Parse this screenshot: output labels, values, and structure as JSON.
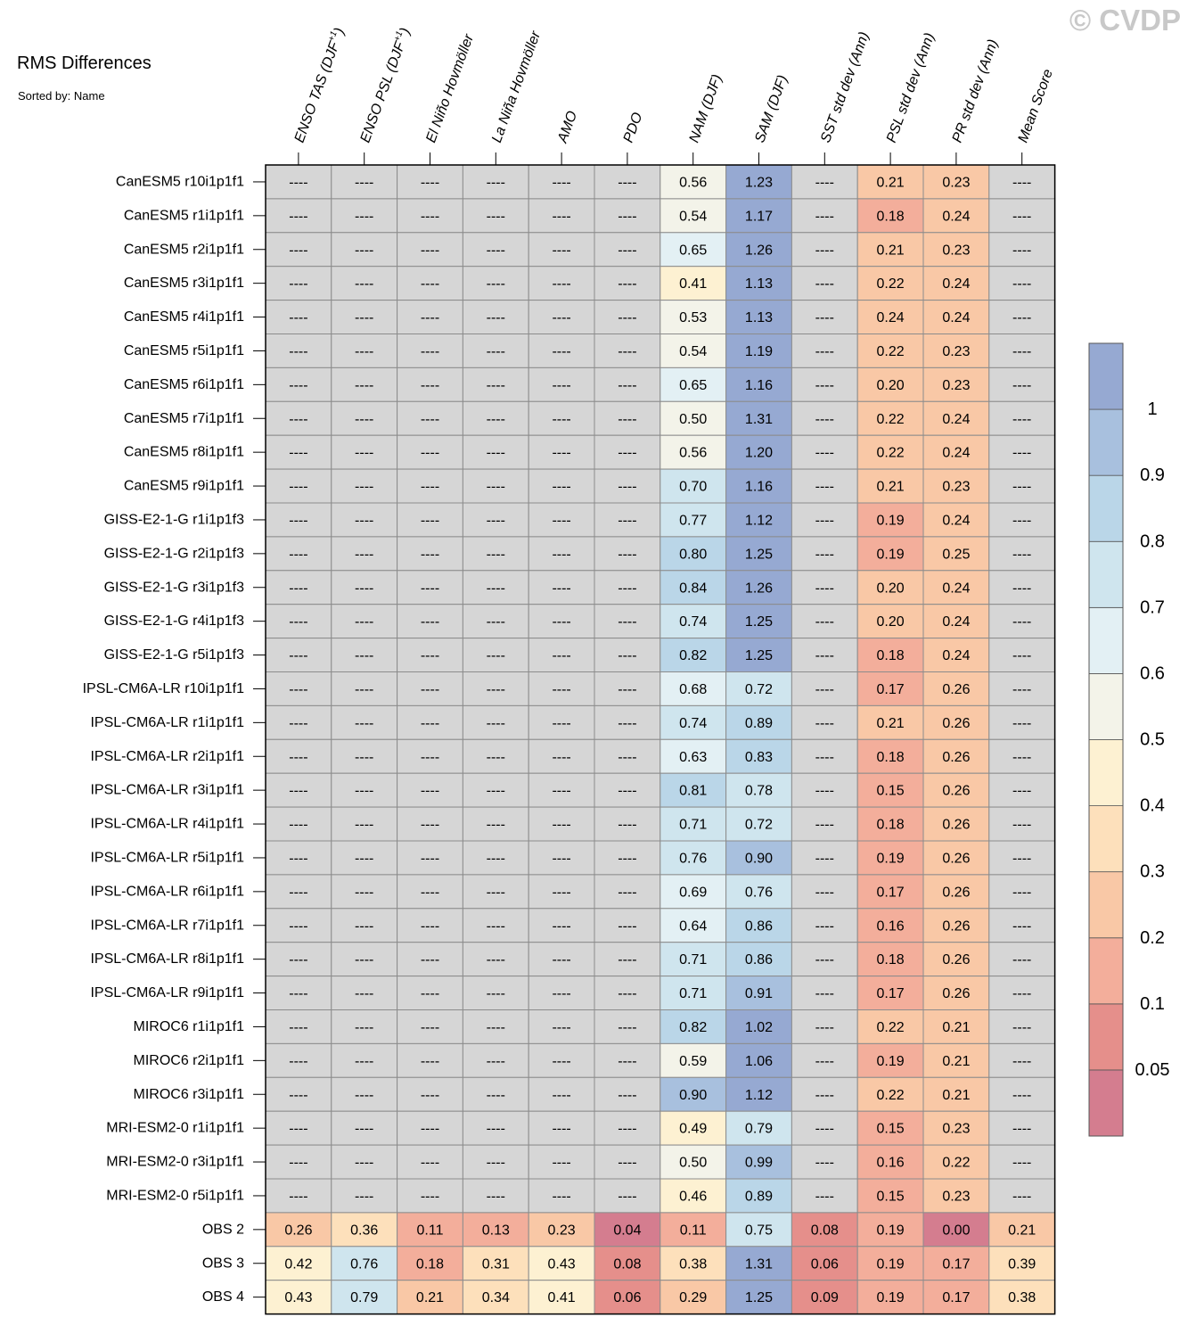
{
  "title": "RMS Differences",
  "subtitle": "Sorted by: Name",
  "watermark": "© CVDP",
  "chart_data": {
    "type": "heatmap",
    "title": "RMS Differences",
    "subtitle": "Sorted by: Name",
    "missing_label": "----",
    "missing_color": "#d6d6d6",
    "columns": [
      {
        "label": "ENSO TAS (DJF",
        "sup": "+1",
        "close": ")"
      },
      {
        "label": "ENSO PSL (DJF",
        "sup": "+1",
        "close": ")"
      },
      {
        "label": "El Niño Hovmöller",
        "sup": "",
        "close": ""
      },
      {
        "label": "La Niña Hovmöller",
        "sup": "",
        "close": ""
      },
      {
        "label": "AMO",
        "sup": "",
        "close": ""
      },
      {
        "label": "PDO",
        "sup": "",
        "close": ""
      },
      {
        "label": "NAM (DJF)",
        "sup": "",
        "close": ""
      },
      {
        "label": "SAM (DJF)",
        "sup": "",
        "close": ""
      },
      {
        "label": "SST std dev (Ann)",
        "sup": "",
        "close": ""
      },
      {
        "label": "PSL std dev (Ann)",
        "sup": "",
        "close": ""
      },
      {
        "label": "PR std dev (Ann)",
        "sup": "",
        "close": ""
      },
      {
        "label": "Mean Score",
        "sup": "",
        "close": ""
      }
    ],
    "rows": [
      {
        "name": "CanESM5 r10i1p1f1",
        "values": [
          null,
          null,
          null,
          null,
          null,
          null,
          0.56,
          1.23,
          null,
          0.21,
          0.23,
          null
        ]
      },
      {
        "name": "CanESM5 r1i1p1f1",
        "values": [
          null,
          null,
          null,
          null,
          null,
          null,
          0.54,
          1.17,
          null,
          0.18,
          0.24,
          null
        ]
      },
      {
        "name": "CanESM5 r2i1p1f1",
        "values": [
          null,
          null,
          null,
          null,
          null,
          null,
          0.65,
          1.26,
          null,
          0.21,
          0.23,
          null
        ]
      },
      {
        "name": "CanESM5 r3i1p1f1",
        "values": [
          null,
          null,
          null,
          null,
          null,
          null,
          0.41,
          1.13,
          null,
          0.22,
          0.24,
          null
        ]
      },
      {
        "name": "CanESM5 r4i1p1f1",
        "values": [
          null,
          null,
          null,
          null,
          null,
          null,
          0.53,
          1.13,
          null,
          0.24,
          0.24,
          null
        ]
      },
      {
        "name": "CanESM5 r5i1p1f1",
        "values": [
          null,
          null,
          null,
          null,
          null,
          null,
          0.54,
          1.19,
          null,
          0.22,
          0.23,
          null
        ]
      },
      {
        "name": "CanESM5 r6i1p1f1",
        "values": [
          null,
          null,
          null,
          null,
          null,
          null,
          0.65,
          1.16,
          null,
          0.2,
          0.23,
          null
        ]
      },
      {
        "name": "CanESM5 r7i1p1f1",
        "values": [
          null,
          null,
          null,
          null,
          null,
          null,
          0.5,
          1.31,
          null,
          0.22,
          0.24,
          null
        ]
      },
      {
        "name": "CanESM5 r8i1p1f1",
        "values": [
          null,
          null,
          null,
          null,
          null,
          null,
          0.56,
          1.2,
          null,
          0.22,
          0.24,
          null
        ]
      },
      {
        "name": "CanESM5 r9i1p1f1",
        "values": [
          null,
          null,
          null,
          null,
          null,
          null,
          0.7,
          1.16,
          null,
          0.21,
          0.23,
          null
        ]
      },
      {
        "name": "GISS-E2-1-G r1i1p1f3",
        "values": [
          null,
          null,
          null,
          null,
          null,
          null,
          0.77,
          1.12,
          null,
          0.19,
          0.24,
          null
        ]
      },
      {
        "name": "GISS-E2-1-G r2i1p1f3",
        "values": [
          null,
          null,
          null,
          null,
          null,
          null,
          0.8,
          1.25,
          null,
          0.19,
          0.25,
          null
        ]
      },
      {
        "name": "GISS-E2-1-G r3i1p1f3",
        "values": [
          null,
          null,
          null,
          null,
          null,
          null,
          0.84,
          1.26,
          null,
          0.2,
          0.24,
          null
        ]
      },
      {
        "name": "GISS-E2-1-G r4i1p1f3",
        "values": [
          null,
          null,
          null,
          null,
          null,
          null,
          0.74,
          1.25,
          null,
          0.2,
          0.24,
          null
        ]
      },
      {
        "name": "GISS-E2-1-G r5i1p1f3",
        "values": [
          null,
          null,
          null,
          null,
          null,
          null,
          0.82,
          1.25,
          null,
          0.18,
          0.24,
          null
        ]
      },
      {
        "name": "IPSL-CM6A-LR r10i1p1f1",
        "values": [
          null,
          null,
          null,
          null,
          null,
          null,
          0.68,
          0.72,
          null,
          0.17,
          0.26,
          null
        ]
      },
      {
        "name": "IPSL-CM6A-LR r1i1p1f1",
        "values": [
          null,
          null,
          null,
          null,
          null,
          null,
          0.74,
          0.89,
          null,
          0.21,
          0.26,
          null
        ]
      },
      {
        "name": "IPSL-CM6A-LR r2i1p1f1",
        "values": [
          null,
          null,
          null,
          null,
          null,
          null,
          0.63,
          0.83,
          null,
          0.18,
          0.26,
          null
        ]
      },
      {
        "name": "IPSL-CM6A-LR r3i1p1f1",
        "values": [
          null,
          null,
          null,
          null,
          null,
          null,
          0.81,
          0.78,
          null,
          0.15,
          0.26,
          null
        ]
      },
      {
        "name": "IPSL-CM6A-LR r4i1p1f1",
        "values": [
          null,
          null,
          null,
          null,
          null,
          null,
          0.71,
          0.72,
          null,
          0.18,
          0.26,
          null
        ]
      },
      {
        "name": "IPSL-CM6A-LR r5i1p1f1",
        "values": [
          null,
          null,
          null,
          null,
          null,
          null,
          0.76,
          0.9,
          null,
          0.19,
          0.26,
          null
        ]
      },
      {
        "name": "IPSL-CM6A-LR r6i1p1f1",
        "values": [
          null,
          null,
          null,
          null,
          null,
          null,
          0.69,
          0.76,
          null,
          0.17,
          0.26,
          null
        ]
      },
      {
        "name": "IPSL-CM6A-LR r7i1p1f1",
        "values": [
          null,
          null,
          null,
          null,
          null,
          null,
          0.64,
          0.86,
          null,
          0.16,
          0.26,
          null
        ]
      },
      {
        "name": "IPSL-CM6A-LR r8i1p1f1",
        "values": [
          null,
          null,
          null,
          null,
          null,
          null,
          0.71,
          0.86,
          null,
          0.18,
          0.26,
          null
        ]
      },
      {
        "name": "IPSL-CM6A-LR r9i1p1f1",
        "values": [
          null,
          null,
          null,
          null,
          null,
          null,
          0.71,
          0.91,
          null,
          0.17,
          0.26,
          null
        ]
      },
      {
        "name": "MIROC6 r1i1p1f1",
        "values": [
          null,
          null,
          null,
          null,
          null,
          null,
          0.82,
          1.02,
          null,
          0.22,
          0.21,
          null
        ]
      },
      {
        "name": "MIROC6 r2i1p1f1",
        "values": [
          null,
          null,
          null,
          null,
          null,
          null,
          0.59,
          1.06,
          null,
          0.19,
          0.21,
          null
        ]
      },
      {
        "name": "MIROC6 r3i1p1f1",
        "values": [
          null,
          null,
          null,
          null,
          null,
          null,
          0.9,
          1.12,
          null,
          0.22,
          0.21,
          null
        ]
      },
      {
        "name": "MRI-ESM2-0 r1i1p1f1",
        "values": [
          null,
          null,
          null,
          null,
          null,
          null,
          0.49,
          0.79,
          null,
          0.15,
          0.23,
          null
        ]
      },
      {
        "name": "MRI-ESM2-0 r3i1p1f1",
        "values": [
          null,
          null,
          null,
          null,
          null,
          null,
          0.5,
          0.99,
          null,
          0.16,
          0.22,
          null
        ]
      },
      {
        "name": "MRI-ESM2-0 r5i1p1f1",
        "values": [
          null,
          null,
          null,
          null,
          null,
          null,
          0.46,
          0.89,
          null,
          0.15,
          0.23,
          null
        ]
      },
      {
        "name": "OBS 2",
        "values": [
          0.26,
          0.36,
          0.11,
          0.13,
          0.23,
          0.04,
          0.11,
          0.75,
          0.08,
          0.19,
          0.0,
          0.21
        ]
      },
      {
        "name": "OBS 3",
        "values": [
          0.42,
          0.76,
          0.18,
          0.31,
          0.43,
          0.08,
          0.38,
          1.31,
          0.06,
          0.19,
          0.17,
          0.39
        ]
      },
      {
        "name": "OBS 4",
        "values": [
          0.43,
          0.79,
          0.21,
          0.34,
          0.41,
          0.06,
          0.29,
          1.25,
          0.09,
          0.19,
          0.17,
          0.38
        ]
      }
    ],
    "colorbar": {
      "levels": [
        0.05,
        0.1,
        0.2,
        0.3,
        0.4,
        0.5,
        0.6,
        0.7,
        0.8,
        0.9,
        1
      ],
      "labels": [
        "0.05",
        "0.1",
        "0.2",
        "0.3",
        "0.4",
        "0.5",
        "0.6",
        "0.7",
        "0.8",
        "0.9",
        "1"
      ],
      "colors": [
        "#d47d8f",
        "#e58f8b",
        "#f3ae9b",
        "#f9c8a6",
        "#fde0bb",
        "#fdf1d2",
        "#f3f3e9",
        "#e3f0f4",
        "#cfe5ee",
        "#bad6e8",
        "#a8c0de",
        "#96a9d2"
      ]
    }
  }
}
